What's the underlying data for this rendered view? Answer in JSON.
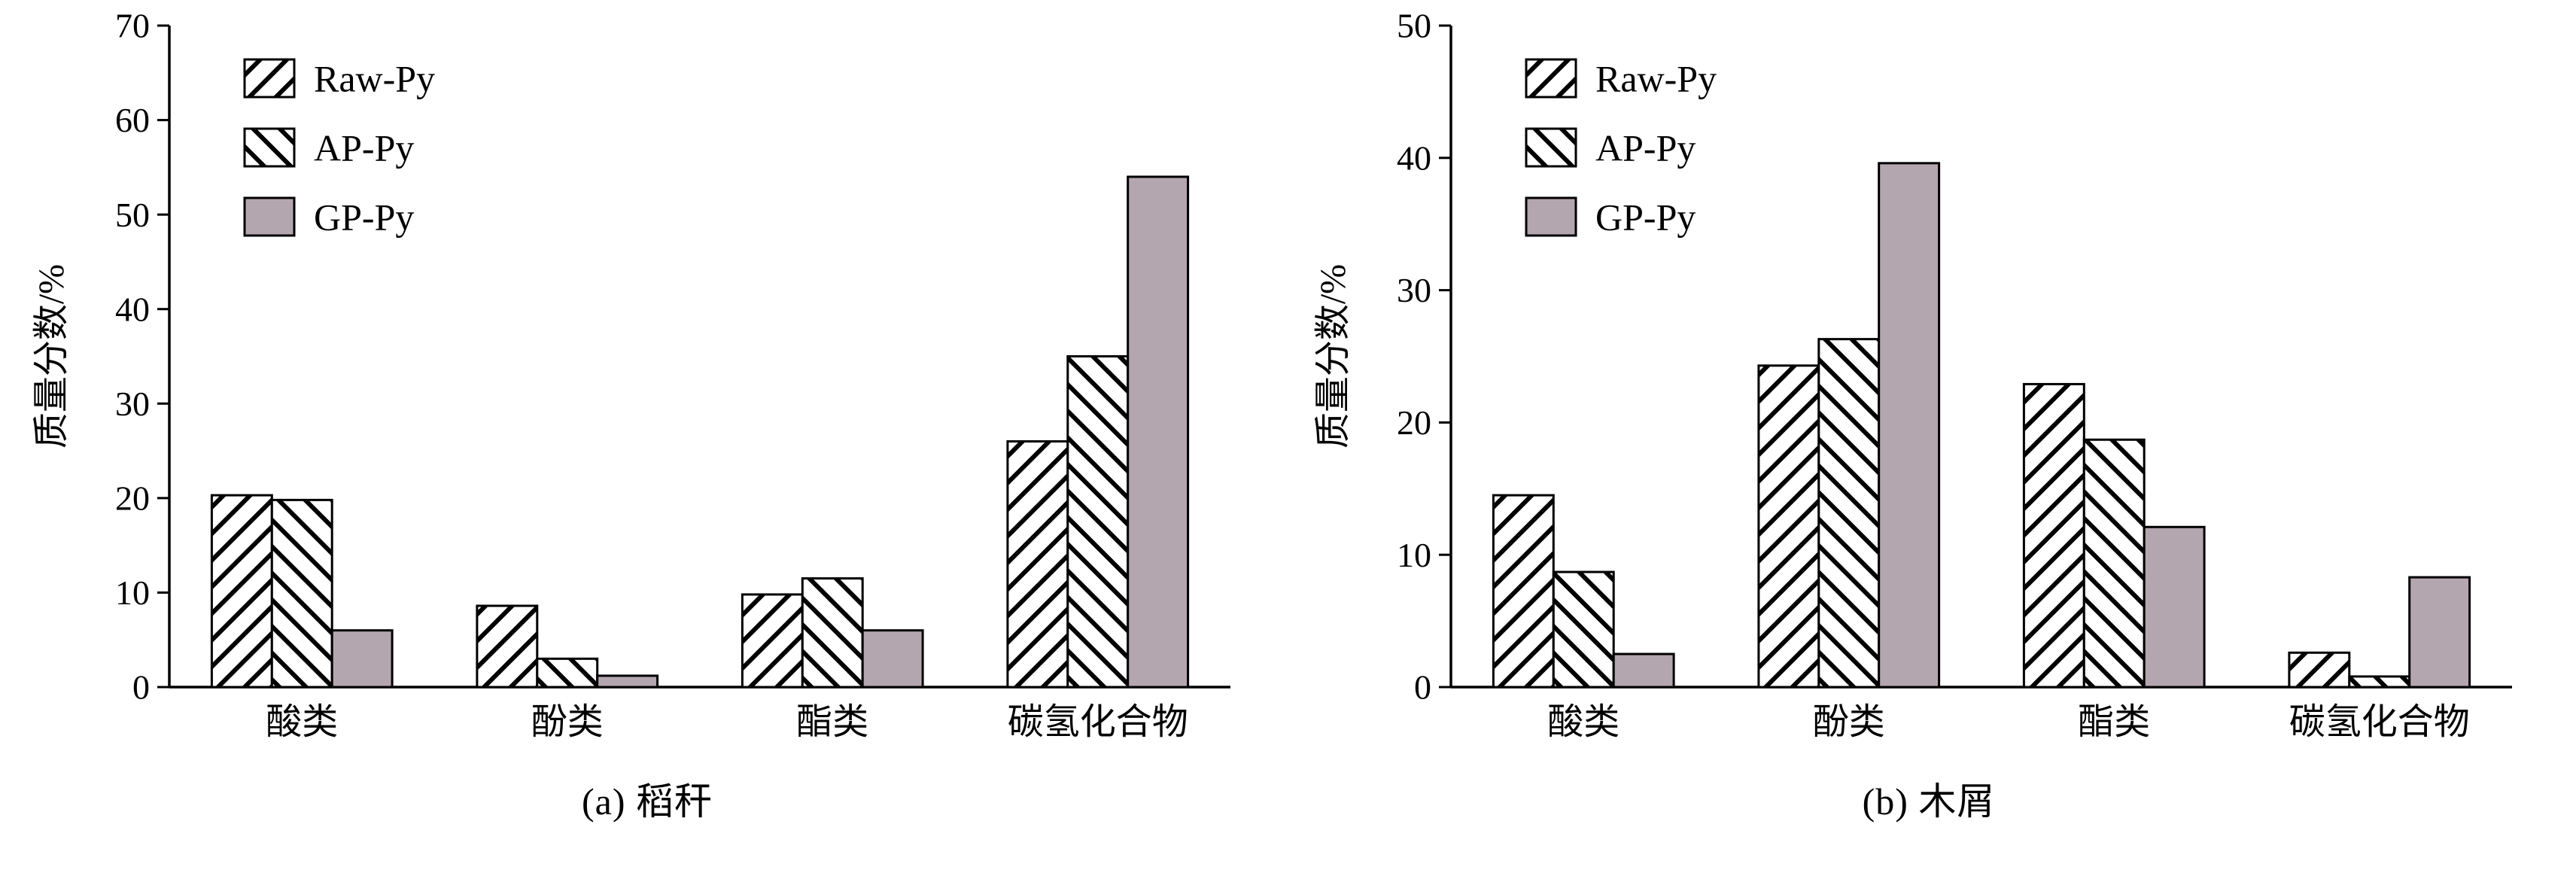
{
  "figure": {
    "background": "#ffffff",
    "bar_outline_color": "#000000",
    "hatch_color": "#000000"
  },
  "chart_data": [
    {
      "type": "bar",
      "title": "(a) 稻秆",
      "xlabel": "",
      "ylabel": "质量分数/%",
      "ylim": [
        0,
        70
      ],
      "ytick_step": 10,
      "ytick_labels": [
        "0",
        "10",
        "20",
        "30",
        "40",
        "50",
        "60",
        "70"
      ],
      "grid": false,
      "legend_position": "top-left",
      "categories": [
        "酸类",
        "酚类",
        "酯类",
        "碳氢化合物"
      ],
      "series": [
        {
          "name": "Raw-Py",
          "style": "hatch-forward",
          "color": "#ffffff",
          "values": [
            20.3,
            8.6,
            9.8,
            26.0
          ]
        },
        {
          "name": "AP-Py",
          "style": "hatch-backward",
          "color": "#ffffff",
          "values": [
            19.8,
            3.0,
            11.5,
            35.0
          ]
        },
        {
          "name": "GP-Py",
          "style": "solid",
          "color": "#b4a6af",
          "values": [
            6.0,
            1.2,
            6.0,
            54.0
          ]
        }
      ]
    },
    {
      "type": "bar",
      "title": "(b) 木屑",
      "xlabel": "",
      "ylabel": "质量分数/%",
      "ylim": [
        0,
        50
      ],
      "ytick_step": 10,
      "ytick_labels": [
        "0",
        "10",
        "20",
        "30",
        "40",
        "50"
      ],
      "grid": false,
      "legend_position": "top-left",
      "categories": [
        "酸类",
        "酚类",
        "酯类",
        "碳氢化合物"
      ],
      "series": [
        {
          "name": "Raw-Py",
          "style": "hatch-forward",
          "color": "#ffffff",
          "values": [
            14.5,
            24.3,
            22.9,
            2.6
          ]
        },
        {
          "name": "AP-Py",
          "style": "hatch-backward",
          "color": "#ffffff",
          "values": [
            8.7,
            26.3,
            18.7,
            0.8
          ]
        },
        {
          "name": "GP-Py",
          "style": "solid",
          "color": "#b4a6af",
          "values": [
            2.5,
            39.6,
            12.1,
            8.3
          ]
        }
      ]
    }
  ]
}
